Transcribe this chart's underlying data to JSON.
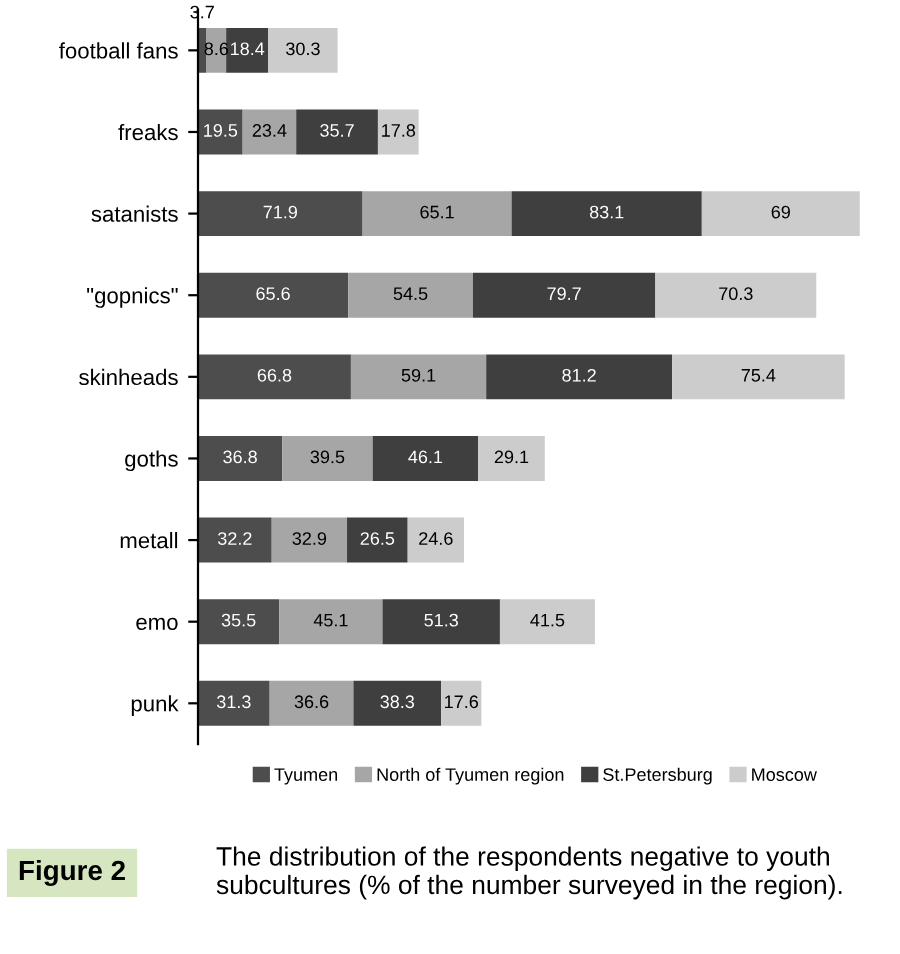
{
  "chart_data": {
    "type": "bar",
    "orientation": "horizontal",
    "stacked": true,
    "data_labels": true,
    "legend": "bottom",
    "grid": false,
    "categories": [
      "football fans",
      "freaks",
      "satanists",
      "\"gopnics\"",
      "skinheads",
      "goths",
      "metall",
      "emo",
      "punk"
    ],
    "series": [
      {
        "name": "Tyumen",
        "color": "#4d4d4d",
        "values": [
          3.7,
          19.5,
          71.9,
          65.6,
          66.8,
          36.8,
          32.2,
          35.5,
          31.3
        ]
      },
      {
        "name": "North of Tyumen region",
        "color": "#a6a6a6",
        "values": [
          8.6,
          23.4,
          65.1,
          54.5,
          59.1,
          39.5,
          32.9,
          45.1,
          36.6
        ]
      },
      {
        "name": "St.Petersburg",
        "color": "#3f3f3f",
        "values": [
          18.4,
          35.7,
          83.1,
          79.7,
          81.2,
          46.1,
          26.5,
          51.3,
          38.3
        ]
      },
      {
        "name": "Moscow",
        "color": "#cccccc",
        "values": [
          30.3,
          17.8,
          69,
          70.3,
          75.4,
          29.1,
          24.6,
          41.5,
          17.6
        ]
      }
    ],
    "annotations": [
      "Figure 2",
      "The distribution of the respondents negative to youth subcultures (% of the number surveyed in the region)."
    ]
  }
}
